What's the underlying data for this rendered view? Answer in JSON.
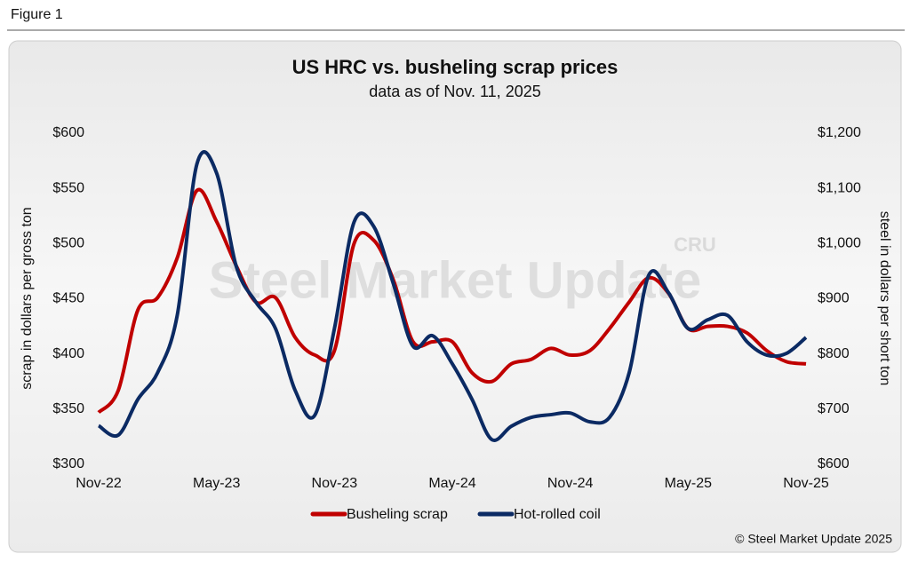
{
  "figure_label": "Figure 1",
  "chart_data": {
    "type": "line",
    "title": "US HRC vs. busheling scrap prices",
    "subtitle": "data as of Nov. 11, 2025",
    "ylabel": "scrap in dollars per gross ton",
    "y2label": "steel in dollars per short ton",
    "watermark": "Steel Market Update",
    "watermark_logo": "CRU",
    "source": "© Steel Market Update 2025",
    "legend": "bottom",
    "categories": [
      "Nov-22",
      null,
      null,
      null,
      null,
      null,
      "May-23",
      null,
      null,
      null,
      null,
      null,
      "Nov-23",
      null,
      null,
      null,
      null,
      null,
      "May-24",
      null,
      null,
      null,
      null,
      null,
      "Nov-24",
      null,
      null,
      null,
      null,
      null,
      "May-25",
      null,
      null,
      null,
      null,
      null,
      "Nov-25"
    ],
    "ylim": [
      300,
      600
    ],
    "yticks": [
      {
        "value": 300,
        "label": "$300"
      },
      {
        "value": 350,
        "label": "$350"
      },
      {
        "value": 400,
        "label": "$400"
      },
      {
        "value": 450,
        "label": "$450"
      },
      {
        "value": 500,
        "label": "$500"
      },
      {
        "value": 550,
        "label": "$550"
      },
      {
        "value": 600,
        "label": "$600"
      }
    ],
    "y2lim": [
      600,
      1200
    ],
    "y2ticks": [
      {
        "value": 600,
        "label": "$600"
      },
      {
        "value": 700,
        "label": "$700"
      },
      {
        "value": 800,
        "label": "$800"
      },
      {
        "value": 900,
        "label": "$900"
      },
      {
        "value": 1000,
        "label": "$1,000"
      },
      {
        "value": 1100,
        "label": "$1,100"
      },
      {
        "value": 1200,
        "label": "$1,200"
      }
    ],
    "series": [
      {
        "name": "Busheling scrap",
        "color": "#c00000",
        "axis": "y",
        "values": [
          347,
          367,
          440,
          451,
          487,
          548,
          520,
          480,
          447,
          451,
          415,
          399,
          403,
          500,
          503,
          467,
          411,
          411,
          411,
          383,
          375,
          391,
          395,
          405,
          399,
          403,
          423,
          447,
          469,
          455,
          423,
          425,
          425,
          419,
          403,
          393,
          391
        ]
      },
      {
        "name": "Hot-rolled coil",
        "color": "#0b2a63",
        "axis": "y2",
        "values": [
          670,
          653,
          718,
          766,
          870,
          1144,
          1128,
          959,
          894,
          846,
          734,
          689,
          846,
          1039,
          1031,
          927,
          814,
          833,
          782,
          718,
          645,
          669,
          685,
          690,
          693,
          677,
          685,
          766,
          943,
          911,
          846,
          862,
          870,
          822,
          798,
          801,
          830
        ]
      }
    ]
  }
}
